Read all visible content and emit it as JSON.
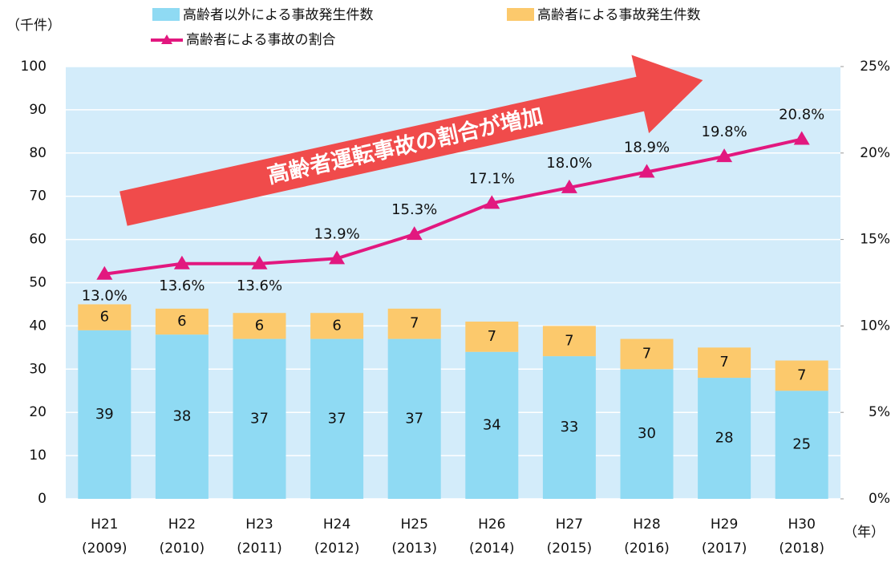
{
  "chart_data": {
    "type": "stacked_bar_line",
    "y_label": "（千件）",
    "x_unit": "（年）",
    "annotation": "高齢者運転事故の割合が増加",
    "categories": [
      [
        "H21",
        "(2009)"
      ],
      [
        "H22",
        "(2010)"
      ],
      [
        "H23",
        "(2011)"
      ],
      [
        "H24",
        "(2012)"
      ],
      [
        "H25",
        "(2013)"
      ],
      [
        "H26",
        "(2014)"
      ],
      [
        "H27",
        "(2015)"
      ],
      [
        "H28",
        "(2016)"
      ],
      [
        "H29",
        "(2017)"
      ],
      [
        "H30",
        "(2018)"
      ]
    ],
    "series": [
      {
        "name": "高齢者以外による事故発生件数",
        "color": "#8fdaf3",
        "values": [
          39,
          38,
          37,
          37,
          37,
          34,
          33,
          30,
          28,
          25
        ]
      },
      {
        "name": "高齢者による事故発生件数",
        "color": "#fcc96c",
        "values": [
          6,
          6,
          6,
          6,
          7,
          7,
          7,
          7,
          7,
          7
        ]
      },
      {
        "name": "高齢者による事故の割合",
        "color": "#e2187f",
        "axis": "y2",
        "values": [
          13.0,
          13.6,
          13.6,
          13.9,
          15.3,
          17.1,
          18.0,
          18.9,
          19.8,
          20.8
        ],
        "value_labels": [
          "13.0%",
          "13.6%",
          "13.6%",
          "13.9%",
          "15.3%",
          "17.1%",
          "18.0%",
          "18.9%",
          "19.8%",
          "20.8%"
        ]
      }
    ],
    "ylim": [
      0,
      100
    ],
    "yticks": [
      0,
      10,
      20,
      30,
      40,
      50,
      60,
      70,
      80,
      90,
      100
    ],
    "y2lim": [
      0,
      25
    ],
    "y2ticks": [
      {
        "value": 0,
        "label": "0%"
      },
      {
        "value": 5,
        "label": "5%"
      },
      {
        "value": 10,
        "label": "10%"
      },
      {
        "value": 15,
        "label": "15%"
      },
      {
        "value": 20,
        "label": "20%"
      },
      {
        "value": 25,
        "label": "25%"
      }
    ],
    "grid": true
  }
}
